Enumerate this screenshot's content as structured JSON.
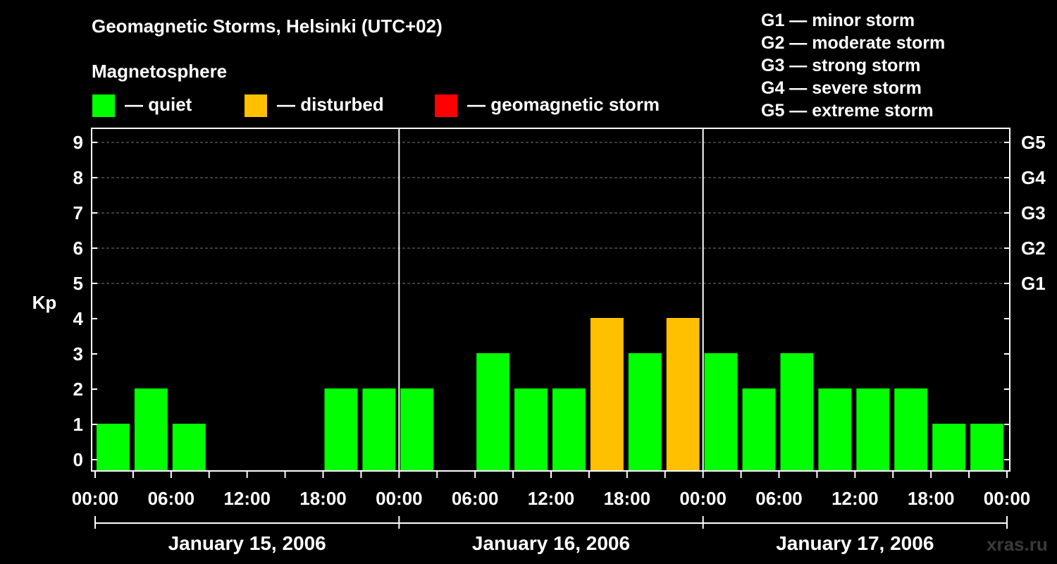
{
  "header": {
    "title": "Geomagnetic Storms, Helsinki (UTC+02)",
    "subtitle": "Magnetosphere"
  },
  "legend": [
    {
      "label": "— quiet",
      "color": "#00ff00"
    },
    {
      "label": "— disturbed",
      "color": "#ffc000"
    },
    {
      "label": "— geomagnetic storm",
      "color": "#ff0000"
    }
  ],
  "g_scale": [
    "G1 — minor storm",
    "G2 — moderate storm",
    "G3 — strong storm",
    "G4 — severe storm",
    "G5 — extreme storm"
  ],
  "watermark": "xras.ru",
  "chart_data": {
    "type": "bar",
    "ylabel": "Kp",
    "ylim": [
      0,
      9
    ],
    "yticks": [
      "0",
      "1",
      "2",
      "3",
      "4",
      "5",
      "6",
      "7",
      "8",
      "9"
    ],
    "right_ticks": [
      {
        "kp": 5,
        "label": "G1"
      },
      {
        "kp": 6,
        "label": "G2"
      },
      {
        "kp": 7,
        "label": "G3"
      },
      {
        "kp": 8,
        "label": "G4"
      },
      {
        "kp": 9,
        "label": "G5"
      }
    ],
    "grid": "dashed horizontal at Kp 5-9",
    "xticks": [
      "00:00",
      "06:00",
      "12:00",
      "18:00",
      "00:00",
      "06:00",
      "12:00",
      "18:00",
      "00:00",
      "06:00",
      "12:00",
      "18:00",
      "00:00"
    ],
    "days": [
      "January 15, 2006",
      "January 16, 2006",
      "January 17, 2006"
    ],
    "interval_hours": 3,
    "values": [
      1,
      2,
      1,
      null,
      null,
      null,
      2,
      2,
      2,
      null,
      3,
      2,
      2,
      4,
      3,
      4,
      3,
      2,
      3,
      2,
      2,
      2,
      1,
      1
    ],
    "colors": {
      "quiet": "#00ff00",
      "disturbed": "#ffc000",
      "storm": "#ff0000"
    }
  }
}
